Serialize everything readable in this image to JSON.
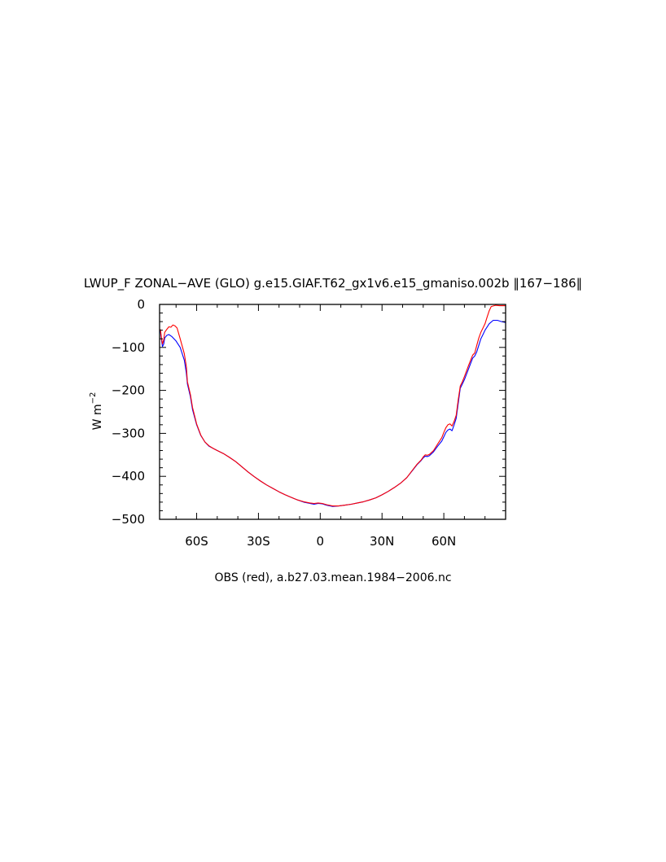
{
  "chart_data": {
    "type": "line",
    "title": "LWUP_F ZONAL−AVE (GLO) g.e15.GIAF.T62_gx1v6.e15_gmaniso.002b ‖167−186‖",
    "ylabel": {
      "base": "W m",
      "exponent": "−2"
    },
    "caption": "OBS (red), a.b27.03.mean.1984−2006.nc",
    "xlim": [
      -78,
      90
    ],
    "ylim": [
      -500,
      0
    ],
    "x_ticks": [
      {
        "value": -60,
        "label": "60S"
      },
      {
        "value": -30,
        "label": "30S"
      },
      {
        "value": 0,
        "label": "0"
      },
      {
        "value": 30,
        "label": "30N"
      },
      {
        "value": 60,
        "label": "60N"
      }
    ],
    "y_ticks": [
      {
        "value": 0,
        "label": "0"
      },
      {
        "value": -100,
        "label": "−100"
      },
      {
        "value": -200,
        "label": "−200"
      },
      {
        "value": -300,
        "label": "−300"
      },
      {
        "value": -400,
        "label": "−400"
      },
      {
        "value": -500,
        "label": "−500"
      }
    ],
    "series": [
      {
        "color": "#0000ff",
        "points": [
          [
            -77.6,
            -62
          ],
          [
            -77,
            -85
          ],
          [
            -76.6,
            -98
          ],
          [
            -76,
            -92
          ],
          [
            -75.5,
            -78
          ],
          [
            -74.5,
            -72
          ],
          [
            -73.5,
            -70
          ],
          [
            -72,
            -75
          ],
          [
            -70,
            -85
          ],
          [
            -68,
            -100
          ],
          [
            -66,
            -130
          ],
          [
            -65,
            -160
          ],
          [
            -64.5,
            -185
          ],
          [
            -63,
            -215
          ],
          [
            -62,
            -245
          ],
          [
            -60,
            -280
          ],
          [
            -58,
            -305
          ],
          [
            -56,
            -320
          ],
          [
            -54,
            -330
          ],
          [
            -52,
            -335
          ],
          [
            -50,
            -340
          ],
          [
            -47,
            -347
          ],
          [
            -44,
            -356
          ],
          [
            -41,
            -366
          ],
          [
            -38,
            -378
          ],
          [
            -35,
            -390
          ],
          [
            -32,
            -401
          ],
          [
            -29,
            -411
          ],
          [
            -26,
            -420
          ],
          [
            -23,
            -428
          ],
          [
            -20,
            -436
          ],
          [
            -17,
            -443
          ],
          [
            -14,
            -449
          ],
          [
            -11,
            -455
          ],
          [
            -8,
            -460
          ],
          [
            -5,
            -463
          ],
          [
            -3,
            -465
          ],
          [
            -1,
            -463
          ],
          [
            1,
            -464
          ],
          [
            3,
            -467
          ],
          [
            6,
            -470
          ],
          [
            9,
            -469
          ],
          [
            12,
            -467
          ],
          [
            15,
            -465
          ],
          [
            18,
            -462
          ],
          [
            21,
            -459
          ],
          [
            24,
            -455
          ],
          [
            27,
            -450
          ],
          [
            30,
            -443
          ],
          [
            33,
            -435
          ],
          [
            36,
            -426
          ],
          [
            39,
            -416
          ],
          [
            42,
            -403
          ],
          [
            45,
            -385
          ],
          [
            47,
            -373
          ],
          [
            49,
            -363
          ],
          [
            50,
            -357
          ],
          [
            51,
            -353
          ],
          [
            52,
            -354
          ],
          [
            53,
            -352
          ],
          [
            55,
            -343
          ],
          [
            57,
            -330
          ],
          [
            59,
            -318
          ],
          [
            60,
            -308
          ],
          [
            61,
            -298
          ],
          [
            62,
            -292
          ],
          [
            63,
            -290
          ],
          [
            64,
            -294
          ],
          [
            65,
            -280
          ],
          [
            66,
            -265
          ],
          [
            67,
            -230
          ],
          [
            68,
            -195
          ],
          [
            69,
            -185
          ],
          [
            70,
            -175
          ],
          [
            72,
            -150
          ],
          [
            74,
            -125
          ],
          [
            75,
            -120
          ],
          [
            76,
            -110
          ],
          [
            77,
            -95
          ],
          [
            78,
            -80
          ],
          [
            79,
            -70
          ],
          [
            80,
            -60
          ],
          [
            82,
            -45
          ],
          [
            84,
            -37
          ],
          [
            86,
            -37
          ],
          [
            88,
            -40
          ],
          [
            90,
            -42
          ]
        ]
      },
      {
        "color": "#ff0000",
        "points": [
          [
            -77.6,
            -58
          ],
          [
            -77,
            -80
          ],
          [
            -76.6,
            -92
          ],
          [
            -76,
            -82
          ],
          [
            -75.5,
            -65
          ],
          [
            -74.5,
            -58
          ],
          [
            -73.5,
            -52
          ],
          [
            -72.5,
            -53
          ],
          [
            -71.5,
            -48
          ],
          [
            -70.5,
            -50
          ],
          [
            -69.5,
            -55
          ],
          [
            -68,
            -80
          ],
          [
            -66,
            -115
          ],
          [
            -65,
            -145
          ],
          [
            -64.5,
            -180
          ],
          [
            -63,
            -210
          ],
          [
            -62,
            -240
          ],
          [
            -60,
            -278
          ],
          [
            -58,
            -304
          ],
          [
            -56,
            -320
          ],
          [
            -54,
            -329
          ],
          [
            -52,
            -335
          ],
          [
            -50,
            -340
          ],
          [
            -47,
            -347
          ],
          [
            -44,
            -356
          ],
          [
            -41,
            -366
          ],
          [
            -38,
            -378
          ],
          [
            -35,
            -390
          ],
          [
            -32,
            -401
          ],
          [
            -29,
            -411
          ],
          [
            -26,
            -420
          ],
          [
            -23,
            -428
          ],
          [
            -20,
            -436
          ],
          [
            -17,
            -443
          ],
          [
            -14,
            -449
          ],
          [
            -11,
            -455
          ],
          [
            -8,
            -459
          ],
          [
            -5,
            -462
          ],
          [
            -3,
            -463
          ],
          [
            -1,
            -462
          ],
          [
            1,
            -463
          ],
          [
            3,
            -466
          ],
          [
            6,
            -469
          ],
          [
            9,
            -469
          ],
          [
            12,
            -467
          ],
          [
            15,
            -465
          ],
          [
            18,
            -462
          ],
          [
            21,
            -459
          ],
          [
            24,
            -455
          ],
          [
            27,
            -450
          ],
          [
            30,
            -443
          ],
          [
            33,
            -435
          ],
          [
            36,
            -426
          ],
          [
            39,
            -416
          ],
          [
            42,
            -403
          ],
          [
            45,
            -384
          ],
          [
            47,
            -372
          ],
          [
            49,
            -362
          ],
          [
            50,
            -355
          ],
          [
            51,
            -350
          ],
          [
            52,
            -351
          ],
          [
            53,
            -349
          ],
          [
            55,
            -340
          ],
          [
            57,
            -325
          ],
          [
            59,
            -310
          ],
          [
            60,
            -298
          ],
          [
            61,
            -287
          ],
          [
            62,
            -280
          ],
          [
            63,
            -278
          ],
          [
            64,
            -283
          ],
          [
            65,
            -272
          ],
          [
            66,
            -258
          ],
          [
            67,
            -222
          ],
          [
            68,
            -190
          ],
          [
            69,
            -180
          ],
          [
            70,
            -168
          ],
          [
            72,
            -142
          ],
          [
            74,
            -118
          ],
          [
            75,
            -113
          ],
          [
            76,
            -95
          ],
          [
            77,
            -78
          ],
          [
            78,
            -65
          ],
          [
            79,
            -55
          ],
          [
            80,
            -45
          ],
          [
            81,
            -30
          ],
          [
            82,
            -15
          ],
          [
            83,
            -5
          ],
          [
            85,
            -2
          ],
          [
            87,
            -3
          ],
          [
            89,
            -3
          ],
          [
            90,
            -3
          ]
        ]
      }
    ]
  }
}
